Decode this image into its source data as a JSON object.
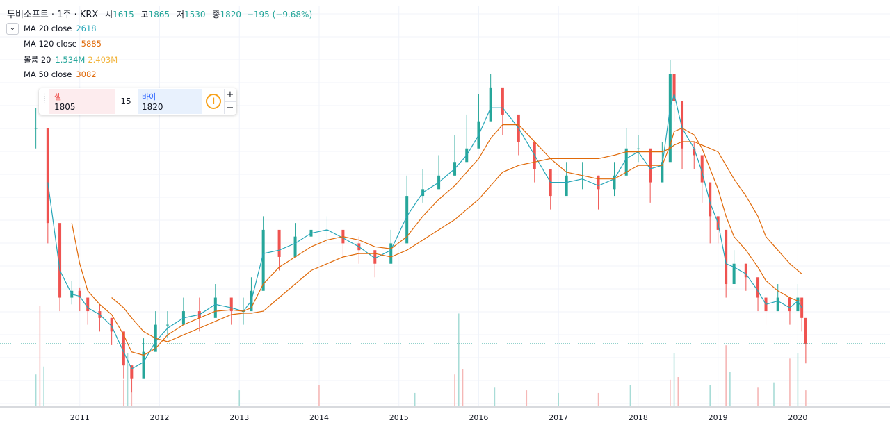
{
  "header": {
    "symbol": "투비소프트 · 1주 · KRX",
    "open_label": "시",
    "open": "1615",
    "high_label": "고",
    "high": "1865",
    "low_label": "저",
    "low": "1530",
    "close_label": "종",
    "close": "1820",
    "change": "−195 (−9.68%)"
  },
  "legend": {
    "collapse_icon": "chevron-down-icon",
    "ma20": {
      "label": "MA 20 close",
      "value": "2618",
      "color": "#26a6b8"
    },
    "ma120": {
      "label": "MA 120 close",
      "value": "5885",
      "color": "#e06a0a"
    },
    "volume": {
      "label": "볼륨 20",
      "value1": "1.534M",
      "value2": "2.403M",
      "color1": "#26a69a",
      "color2": "#f2b43c"
    },
    "ma50": {
      "label": "MA 50 close",
      "value": "3082",
      "color": "#e06a0a"
    }
  },
  "trade": {
    "sell_label": "셀",
    "sell_price": "1805",
    "spread": "15",
    "buy_label": "바이",
    "buy_price": "1820",
    "info_icon": "info-icon",
    "plus": "+",
    "minus": "−"
  },
  "colors": {
    "up": "#26a69a",
    "down": "#ef5350",
    "grid": "#f0f3fa",
    "ma20": "#26a6b8",
    "ma50": "#e06a0a",
    "ma120": "#e06a0a",
    "last_price_line": "#26a69a"
  },
  "chart_data": {
    "type": "candlestick",
    "x_ticks": [
      "2011",
      "2012",
      "2013",
      "2014",
      "2015",
      "2016",
      "2017",
      "2018",
      "2019",
      "2020"
    ],
    "last_price": 1820,
    "price_series": {
      "x": [
        2010.45,
        2010.6,
        2010.75,
        2010.9,
        2011.0,
        2011.1,
        2011.25,
        2011.4,
        2011.55,
        2011.65,
        2011.8,
        2011.95,
        2012.1,
        2012.3,
        2012.5,
        2012.7,
        2012.9,
        2013.05,
        2013.15,
        2013.3,
        2013.5,
        2013.7,
        2013.9,
        2014.1,
        2014.3,
        2014.5,
        2014.7,
        2014.9,
        2015.1,
        2015.3,
        2015.5,
        2015.7,
        2015.85,
        2016.0,
        2016.15,
        2016.3,
        2016.5,
        2016.7,
        2016.9,
        2017.1,
        2017.3,
        2017.5,
        2017.7,
        2017.85,
        2018.0,
        2018.15,
        2018.3,
        2018.4,
        2018.45,
        2018.55,
        2018.7,
        2018.8,
        2018.9,
        2019.0,
        2019.1,
        2019.2,
        2019.35,
        2019.5,
        2019.6,
        2019.75,
        2019.9,
        2020.0,
        2020.05,
        2020.1
      ],
      "close": [
        5000,
        3600,
        2500,
        2600,
        2500,
        2300,
        2200,
        2000,
        1500,
        1300,
        1700,
        2100,
        2100,
        2300,
        2200,
        2500,
        2300,
        2300,
        2600,
        3500,
        3100,
        3400,
        3500,
        3500,
        3300,
        3200,
        3000,
        3300,
        4000,
        4100,
        4300,
        4500,
        4700,
        5100,
        5600,
        5200,
        4800,
        4400,
        4000,
        4300,
        4300,
        4100,
        4300,
        4700,
        4700,
        4200,
        4500,
        5800,
        5400,
        4700,
        4600,
        4200,
        3700,
        3500,
        2700,
        3000,
        2800,
        2500,
        2300,
        2500,
        2300,
        2500,
        2200,
        1820
      ],
      "high": [
        5300,
        3900,
        2700,
        2750,
        2650,
        2500,
        2400,
        2200,
        1700,
        1500,
        1900,
        2300,
        2300,
        2500,
        2500,
        2700,
        2500,
        2500,
        2800,
        3700,
        3300,
        3600,
        3700,
        3700,
        3500,
        3400,
        3200,
        3500,
        4300,
        4400,
        4600,
        4900,
        5200,
        5500,
        5800,
        5500,
        5000,
        4600,
        4300,
        4500,
        4500,
        4300,
        4500,
        5000,
        4900,
        4500,
        4800,
        6000,
        5700,
        5000,
        4800,
        4400,
        3900,
        3700,
        2900,
        3200,
        3000,
        2700,
        2500,
        2700,
        2500,
        2700,
        2500,
        1865
      ],
      "low": [
        4700,
        3300,
        2300,
        2400,
        2300,
        2100,
        2000,
        1800,
        1300,
        1100,
        1500,
        1900,
        1900,
        2100,
        2000,
        2300,
        2100,
        2100,
        2400,
        3300,
        2900,
        3200,
        3300,
        3300,
        3100,
        3000,
        2800,
        3100,
        3800,
        3900,
        4100,
        4300,
        4500,
        4800,
        5300,
        4900,
        4600,
        4200,
        3800,
        4100,
        4100,
        3800,
        4000,
        4500,
        4500,
        3900,
        4300,
        5500,
        5100,
        4400,
        4400,
        3900,
        3300,
        3300,
        2500,
        2800,
        2600,
        2300,
        2100,
        2300,
        2100,
        2300,
        2000,
        1530
      ],
      "ma20": [
        null,
        4200,
        2900,
        2550,
        2520,
        2350,
        2250,
        2080,
        1700,
        1450,
        1550,
        1850,
        2050,
        2200,
        2250,
        2400,
        2350,
        2300,
        2450,
        3150,
        3200,
        3300,
        3450,
        3500,
        3380,
        3250,
        3080,
        3200,
        3700,
        4050,
        4200,
        4400,
        4600,
        4900,
        5300,
        5300,
        5000,
        4600,
        4200,
        4200,
        4250,
        4150,
        4250,
        4550,
        4650,
        4400,
        4450,
        5300,
        5500,
        5000,
        4700,
        4350,
        3900,
        3600,
        3000,
        2950,
        2850,
        2600,
        2400,
        2450,
        2350,
        2450,
        2350,
        2618
      ],
      "ma50": [
        null,
        null,
        null,
        3600,
        3000,
        2600,
        2400,
        2250,
        1950,
        1700,
        1650,
        1750,
        1950,
        2100,
        2200,
        2300,
        2320,
        2300,
        2350,
        2700,
        2950,
        3100,
        3250,
        3350,
        3400,
        3350,
        3250,
        3220,
        3400,
        3700,
        3950,
        4150,
        4350,
        4550,
        4850,
        5050,
        5050,
        4800,
        4550,
        4350,
        4300,
        4250,
        4250,
        4350,
        4450,
        4450,
        4450,
        4750,
        4950,
        5000,
        4900,
        4700,
        4400,
        4100,
        3700,
        3400,
        3200,
        2950,
        2750,
        2600,
        2500,
        2450,
        2450,
        3082
      ],
      "ma120": [
        null,
        null,
        null,
        null,
        null,
        null,
        null,
        2500,
        2350,
        2200,
        2000,
        1900,
        1850,
        1950,
        2050,
        2150,
        2250,
        2270,
        2270,
        2300,
        2500,
        2700,
        2900,
        3000,
        3100,
        3150,
        3150,
        3100,
        3200,
        3350,
        3500,
        3650,
        3800,
        3950,
        4150,
        4350,
        4450,
        4500,
        4550,
        4550,
        4550,
        4550,
        4600,
        4650,
        4650,
        4650,
        4650,
        4700,
        4750,
        4800,
        4800,
        4750,
        4700,
        4650,
        4450,
        4250,
        4000,
        3700,
        3400,
        3200,
        3000,
        2900,
        2850,
        5885
      ]
    },
    "volume_series": {
      "x": [
        2010.45,
        2010.5,
        2010.55,
        2011.55,
        2011.6,
        2011.65,
        2013.0,
        2014.0,
        2015.2,
        2015.7,
        2015.75,
        2015.8,
        2016.2,
        2016.6,
        2017.0,
        2017.5,
        2017.9,
        2018.4,
        2018.45,
        2018.5,
        2018.9,
        2019.1,
        2019.15,
        2019.5,
        2019.7,
        2019.9,
        2020.0,
        2020.1
      ],
      "value": [
        1.2,
        3.8,
        1.5,
        1.0,
        2.0,
        1.1,
        0.6,
        0.8,
        0.5,
        1.2,
        3.5,
        1.4,
        0.7,
        0.6,
        0.5,
        0.5,
        0.8,
        1.0,
        2.0,
        1.1,
        0.8,
        2.3,
        1.3,
        0.7,
        0.9,
        1.8,
        2.0,
        0.6
      ]
    },
    "xlim": [
      2010.0,
      2020.65
    ],
    "ylim": [
      1000,
      6500
    ]
  }
}
